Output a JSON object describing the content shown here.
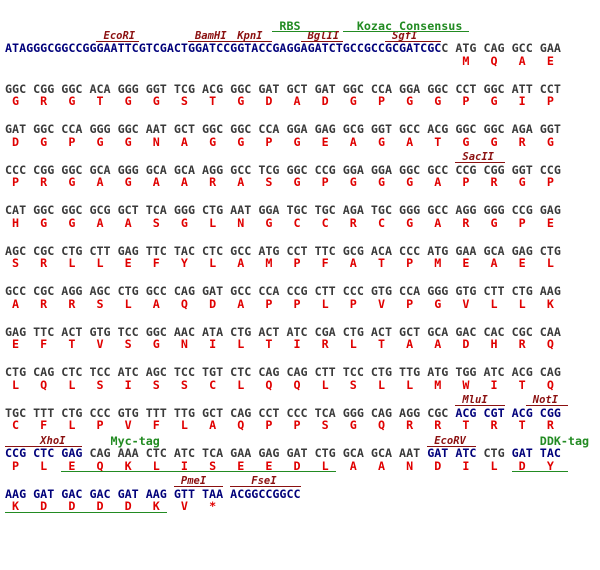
{
  "colors": {
    "regulatory_sequence": "#00007a",
    "coding_sequence": "#3a3a3a",
    "amino_acid": "#e00000",
    "restriction_site": "#8b1010",
    "feature": "#228b22"
  },
  "rows": [
    {
      "sequence": [
        {
          "text": "ATAGGGCGGCCGGGAATTCGTCGACTGGATCCGGTACCGAGGAGATCTGCCGCCGCGATCGC",
          "color": "#00007a"
        },
        {
          "text": "C ATG CAG GCC GAA",
          "color": "#3a3a3a"
        }
      ],
      "amino_acids": [
        "M",
        "Q",
        "A",
        "E"
      ],
      "feature_labels": [
        "RBS",
        "Kozac Consensus"
      ],
      "site_labels": [
        "EcoRI",
        "BamHI",
        "KpnI",
        "BglII",
        "SgfI"
      ]
    },
    {
      "sequence": [
        {
          "text": "GGC CGG GGC ACA GGG GGT TCG ACG GGC GAT GCT GAT GGC CCA GGA GGC CCT GGC ATT CCT",
          "color": "#3a3a3a"
        }
      ],
      "amino_acids": [
        "G",
        "R",
        "G",
        "T",
        "G",
        "G",
        "S",
        "T",
        "G",
        "D",
        "A",
        "D",
        "G",
        "P",
        "G",
        "G",
        "P",
        "G",
        "I",
        "P"
      ]
    },
    {
      "sequence": [
        {
          "text": "GAT GGC CCA GGG GGC AAT GCT GGC GGC CCA GGA GAG GCG GGT GCC ACG GGC GGC AGA GGT",
          "color": "#3a3a3a"
        }
      ],
      "amino_acids": [
        "D",
        "G",
        "P",
        "G",
        "G",
        "N",
        "A",
        "G",
        "G",
        "P",
        "G",
        "E",
        "A",
        "G",
        "A",
        "T",
        "G",
        "G",
        "R",
        "G"
      ]
    },
    {
      "sequence": [
        {
          "text": "CCC CGG GGC GCA GGG GCA GCA AGG GCC TCG GGC CCG GGA GGA GGC GCC CCG CGG GGT CCG",
          "color": "#3a3a3a"
        }
      ],
      "amino_acids": [
        "P",
        "R",
        "G",
        "A",
        "G",
        "A",
        "A",
        "R",
        "A",
        "S",
        "G",
        "P",
        "G",
        "G",
        "G",
        "A",
        "P",
        "R",
        "G",
        "P"
      ],
      "site_labels": [
        "SacII"
      ]
    },
    {
      "sequence": [
        {
          "text": "CAT GGC GGC GCG GCT TCA GGG CTG AAT GGA TGC TGC AGA TGC GGG GCC AGG GGG CCG GAG",
          "color": "#3a3a3a"
        }
      ],
      "amino_acids": [
        "H",
        "G",
        "G",
        "A",
        "A",
        "S",
        "G",
        "L",
        "N",
        "G",
        "C",
        "C",
        "R",
        "C",
        "G",
        "A",
        "R",
        "G",
        "P",
        "E"
      ]
    },
    {
      "sequence": [
        {
          "text": "AGC CGC CTG CTT GAG TTC TAC CTC GCC ATG CCT TTC GCG ACA CCC ATG GAA GCA GAG CTG",
          "color": "#3a3a3a"
        }
      ],
      "amino_acids": [
        "S",
        "R",
        "L",
        "L",
        "E",
        "F",
        "Y",
        "L",
        "A",
        "M",
        "P",
        "F",
        "A",
        "T",
        "P",
        "M",
        "E",
        "A",
        "E",
        "L"
      ]
    },
    {
      "sequence": [
        {
          "text": "GCC CGC AGG AGC CTG GCC CAG GAT GCC CCA CCG CTT CCC GTG CCA GGG GTG CTT CTG AAG",
          "color": "#3a3a3a"
        }
      ],
      "amino_acids": [
        "A",
        "R",
        "R",
        "S",
        "L",
        "A",
        "Q",
        "D",
        "A",
        "P",
        "P",
        "L",
        "P",
        "V",
        "P",
        "G",
        "V",
        "L",
        "L",
        "K"
      ]
    },
    {
      "sequence": [
        {
          "text": "GAG TTC ACT GTG TCC GGC AAC ATA CTG ACT ATC CGA CTG ACT GCT GCA GAC CAC CGC CAA",
          "color": "#3a3a3a"
        }
      ],
      "amino_acids": [
        "E",
        "F",
        "T",
        "V",
        "S",
        "G",
        "N",
        "I",
        "L",
        "T",
        "I",
        "R",
        "L",
        "T",
        "A",
        "A",
        "D",
        "H",
        "R",
        "Q"
      ]
    },
    {
      "sequence": [
        {
          "text": "CTG CAG CTC TCC ATC AGC TCC TGT CTC CAG CAG CTT TCC CTG TTG ATG TGG ATC ACG CAG",
          "color": "#3a3a3a"
        }
      ],
      "amino_acids": [
        "L",
        "Q",
        "L",
        "S",
        "I",
        "S",
        "S",
        "C",
        "L",
        "Q",
        "Q",
        "L",
        "S",
        "L",
        "L",
        "M",
        "W",
        "I",
        "T",
        "Q"
      ]
    },
    {
      "sequence": [
        {
          "text": "TGC TTT CTG CCC GTG TTT TTG GCT CAG CCT CCC TCA GGG CAG AGG CGC ",
          "color": "#3a3a3a"
        },
        {
          "text": "ACG CGT ACG CGG",
          "color": "#00007a"
        }
      ],
      "amino_acids": [
        "C",
        "F",
        "L",
        "P",
        "V",
        "F",
        "L",
        "A",
        "Q",
        "P",
        "P",
        "S",
        "G",
        "Q",
        "R",
        "R",
        "T",
        "R",
        "T",
        "R"
      ],
      "site_labels": [
        "MluI",
        "NotI"
      ]
    },
    {
      "sequence": [
        {
          "text": "CCG CTC GAG",
          "color": "#00007a"
        },
        {
          "text": " CAG AAA CTC ATC TCA GAA GAG GAT CTG GCA GCA AAT ",
          "color": "#3a3a3a"
        },
        {
          "text": "GAT ATC",
          "color": "#00007a"
        },
        {
          "text": " CTG ",
          "color": "#3a3a3a"
        },
        {
          "text": "GAT TAC",
          "color": "#00007a"
        }
      ],
      "amino_acids": [
        "P",
        "L",
        "E",
        "Q",
        "K",
        "L",
        "I",
        "S",
        "E",
        "E",
        "D",
        "L",
        "A",
        "A",
        "N",
        "D",
        "I",
        "L",
        "D",
        "Y"
      ],
      "site_labels": [
        "XhoI",
        "EcoRV"
      ],
      "feature_labels": [
        "Myc-tag",
        "DDK-tag"
      ]
    },
    {
      "sequence": [
        {
          "text": "AAG GAT GAC GAC GAT AAG GTT TAA ACGGCCGGCC",
          "color": "#00007a"
        }
      ],
      "amino_acids": [
        "K",
        "D",
        "D",
        "D",
        "D",
        "K",
        "V",
        "*"
      ],
      "site_labels": [
        "PmeI",
        "FseI"
      ]
    }
  ]
}
